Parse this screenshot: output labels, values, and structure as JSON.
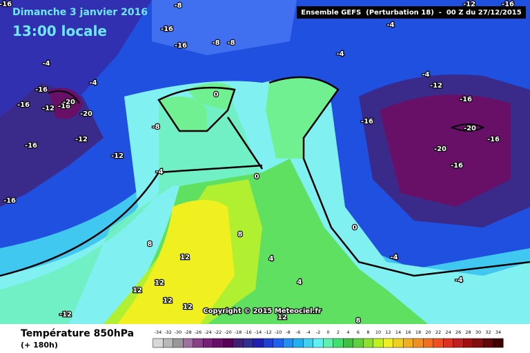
{
  "header": {
    "title": "Dimanche 3 janvier 2016",
    "time": "13:00 locale",
    "model": "Ensemble GEFS  (Perturbation 18)  -  00 Z du 27/12/2015"
  },
  "map": {
    "copyright": "Copyright © 2015 Meteociel.fr",
    "contour_labels": [
      -16,
      -8,
      -16,
      -16,
      -8,
      -8,
      -4,
      -4,
      -12,
      -16,
      -4,
      -4,
      -4,
      -12,
      -16,
      -12,
      -16,
      -20,
      -20,
      -16,
      0,
      -8,
      -12,
      -16,
      -12,
      -16,
      -16,
      -20,
      -16,
      -20,
      -16,
      -4,
      0,
      -16,
      8,
      8,
      0,
      12,
      4,
      -4,
      12,
      4,
      -4,
      12,
      12,
      12,
      12,
      -12,
      8
    ]
  },
  "legend": {
    "title": "Température 850hPa",
    "lead": "(+ 180h)",
    "scale": {
      "values": [
        -34,
        -32,
        -30,
        -28,
        -26,
        -24,
        -22,
        -20,
        -18,
        -16,
        -14,
        -12,
        -10,
        -8,
        -6,
        -4,
        -2,
        0,
        2,
        4,
        6,
        8,
        10,
        12,
        14,
        16,
        18,
        20,
        22,
        24,
        26,
        28,
        30,
        32,
        34
      ],
      "colors": [
        "#d8d8d8",
        "#b8b8b8",
        "#989898",
        "#a070a0",
        "#884088",
        "#782078",
        "#681068",
        "#580058",
        "#402070",
        "#303090",
        "#2020b0",
        "#2040d0",
        "#2060f0",
        "#2090f0",
        "#20b0f0",
        "#40d0f0",
        "#60f0f0",
        "#60f0b0",
        "#40e070",
        "#40c040",
        "#60d040",
        "#90e030",
        "#c0f020",
        "#f0f020",
        "#f0d020",
        "#f0b020",
        "#f09020",
        "#f07020",
        "#f05020",
        "#e03020",
        "#c02020",
        "#a01010",
        "#801010",
        "#600808",
        "#400000"
      ]
    }
  }
}
